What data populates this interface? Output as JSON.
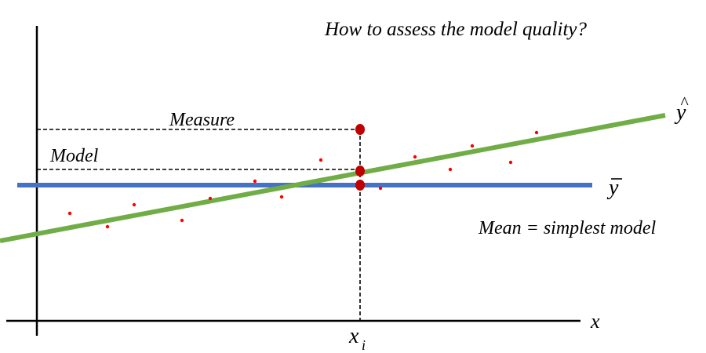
{
  "title": "How to assess the model quality?",
  "labels": {
    "measure": "Measure",
    "model": "Model",
    "x_axis": "x",
    "x_i_base": "x",
    "x_i_sub": "i",
    "y_hat_base": "y",
    "y_hat_accent": "^",
    "y_bar_base": "y",
    "mean_note": "Mean = simplest model"
  },
  "colors": {
    "axis": "#000000",
    "regression_line": "#70ad47",
    "mean_line": "#4472c4",
    "data_points": "#ff0000",
    "highlight_points": "#c00000",
    "guides": "#000000",
    "text": "#000000"
  }
}
